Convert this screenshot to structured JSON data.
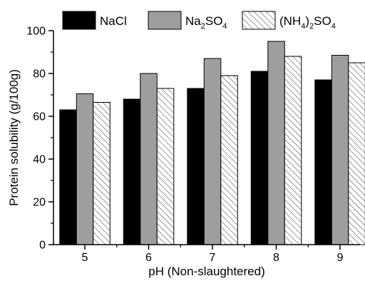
{
  "chart_data": {
    "type": "bar",
    "title": "",
    "xlabel": "pH (Non-slaughtered)",
    "ylabel": "Protein solubility (g/100g)",
    "categories": [
      "5",
      "6",
      "7",
      "8",
      "9"
    ],
    "ylim": [
      0,
      100
    ],
    "yticks": [
      0,
      20,
      40,
      60,
      80,
      100
    ],
    "grid": false,
    "legend_position": "top",
    "series": [
      {
        "name": "NaCl",
        "color": "#000000",
        "pattern": "solid",
        "values": [
          63,
          68,
          73,
          81,
          77
        ]
      },
      {
        "name": "Na2SO4",
        "color": "#9e9e9e",
        "pattern": "solid",
        "values": [
          70.5,
          80,
          87,
          95,
          88.5
        ]
      },
      {
        "name": "(NH4)2SO4",
        "color": "#ffffff",
        "pattern": "hatch",
        "values": [
          66.5,
          73,
          79,
          88,
          85
        ]
      }
    ]
  }
}
